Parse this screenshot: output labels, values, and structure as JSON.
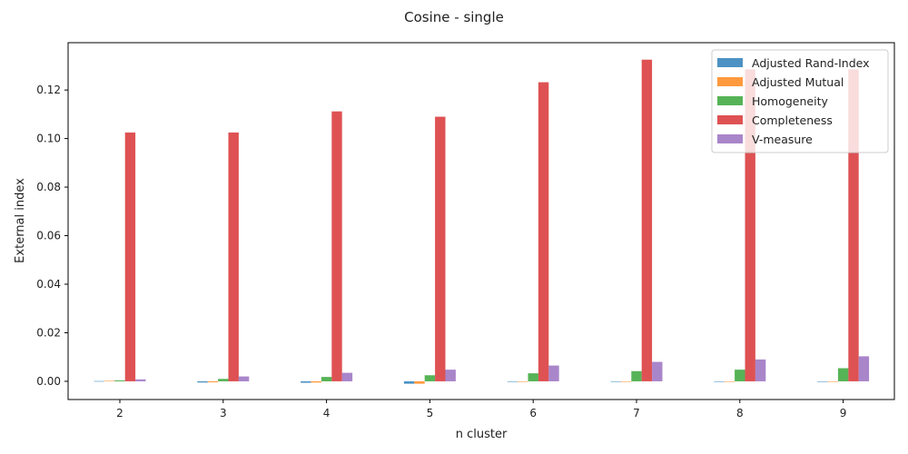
{
  "chart_data": {
    "type": "bar",
    "title": "Cosine - single",
    "xlabel": "n cluster",
    "ylabel": "External index",
    "categories": [
      "2",
      "3",
      "4",
      "5",
      "6",
      "7",
      "8",
      "9"
    ],
    "ylim": [
      -0.0075,
      0.1395
    ],
    "yticks": [
      "0.00",
      "0.02",
      "0.04",
      "0.06",
      "0.08",
      "0.10",
      "0.12"
    ],
    "ytick_values": [
      0,
      0.02,
      0.04,
      0.06,
      0.08,
      0.1,
      0.12
    ],
    "grid": false,
    "legend_position": "top-right",
    "series": [
      {
        "name": "Adjusted Rand-Index",
        "color": "#1f77b4",
        "values": [
          0.0001,
          -0.0005,
          -0.0006,
          -0.001,
          -0.0002,
          0.0,
          -0.0002,
          -0.0002
        ]
      },
      {
        "name": "Adjusted Mutual",
        "color": "#ff7f0e",
        "values": [
          0.0002,
          -0.0004,
          -0.0005,
          -0.001,
          -0.0002,
          0.0,
          -0.0002,
          -0.0002
        ]
      },
      {
        "name": "Homogeneity",
        "color": "#2ca02c",
        "values": [
          0.0004,
          0.001,
          0.0018,
          0.0025,
          0.0033,
          0.0042,
          0.0048,
          0.0054
        ]
      },
      {
        "name": "Completeness",
        "color": "#d62728",
        "values": [
          0.1025,
          0.1025,
          0.1112,
          0.109,
          0.1232,
          0.1325,
          0.1285,
          0.1285
        ]
      },
      {
        "name": "V-measure",
        "color": "#9467bd",
        "values": [
          0.0008,
          0.002,
          0.0035,
          0.0048,
          0.0065,
          0.008,
          0.009,
          0.0103
        ]
      }
    ]
  }
}
